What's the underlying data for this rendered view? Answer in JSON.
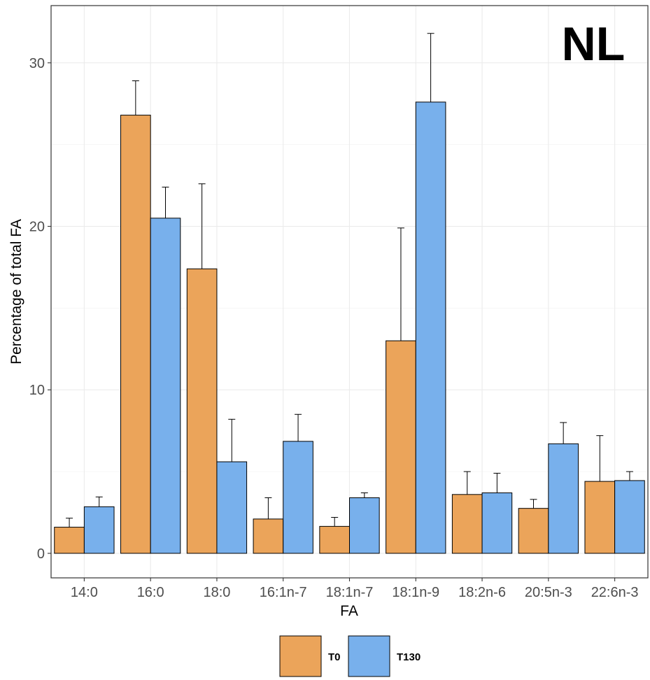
{
  "chart_data": {
    "type": "bar",
    "panel_label": "NL",
    "xlabel": "FA",
    "ylabel": "Percentage of total FA",
    "categories": [
      "14:0",
      "16:0",
      "18:0",
      "16:1n-7",
      "18:1n-7",
      "18:1n-9",
      "18:2n-6",
      "20:5n-3",
      "22:6n-3"
    ],
    "ylim": [
      -1.5,
      33.5
    ],
    "yticks": [
      0,
      10,
      20,
      30
    ],
    "grid": true,
    "legend_position": "bottom",
    "series": [
      {
        "name": "T0",
        "color": "#EBA45A",
        "values": [
          1.6,
          26.8,
          17.4,
          2.1,
          1.65,
          13.0,
          3.6,
          2.75,
          4.4
        ],
        "error_upper": [
          2.15,
          28.9,
          22.6,
          3.4,
          2.2,
          19.9,
          5.0,
          3.3,
          7.2
        ]
      },
      {
        "name": "T130",
        "color": "#78B0EC",
        "values": [
          2.85,
          20.5,
          5.6,
          6.85,
          3.4,
          27.6,
          3.7,
          6.7,
          4.45
        ],
        "error_upper": [
          3.45,
          22.4,
          8.2,
          8.5,
          3.7,
          31.8,
          4.9,
          8.0,
          5.0
        ]
      }
    ]
  }
}
